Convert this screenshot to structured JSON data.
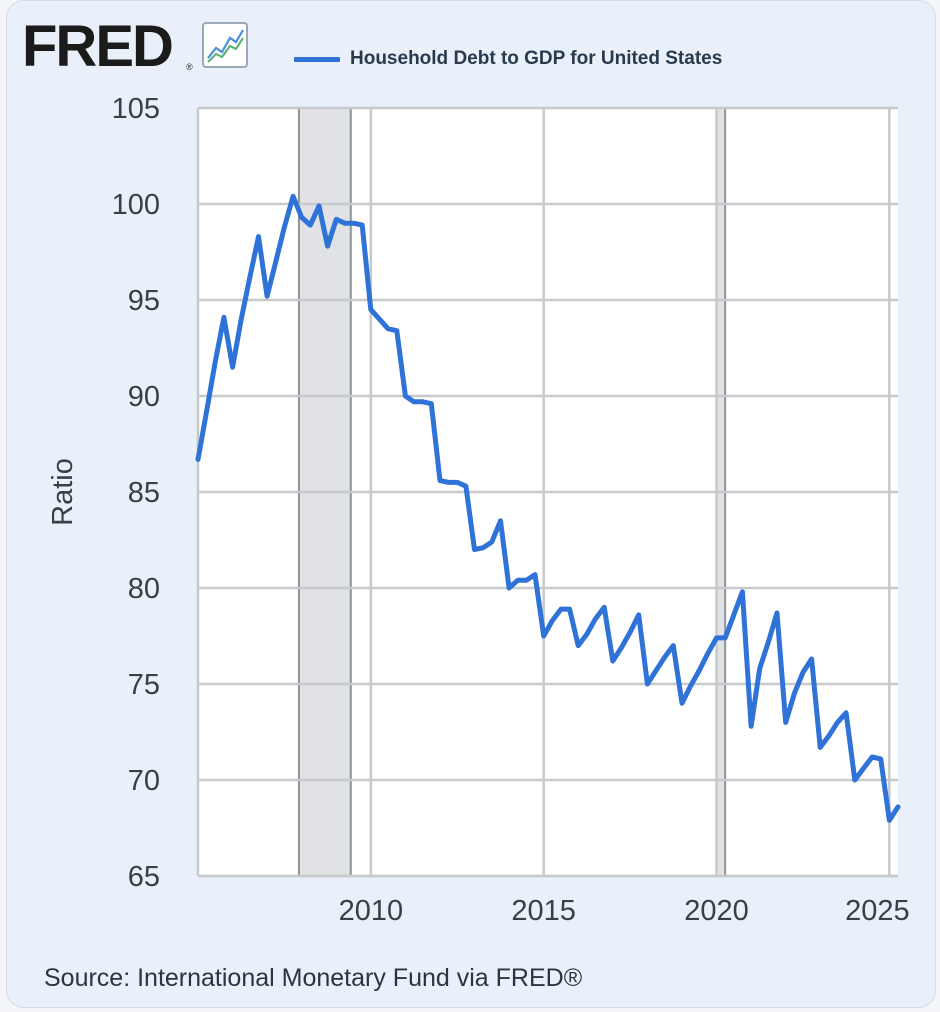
{
  "header": {
    "logo_text": "FRED",
    "logo_reg": "®",
    "graph_icon": "line-chart-icon"
  },
  "colors": {
    "series": "#2f72d8",
    "recession": "#e0e2e6",
    "grid": "#c7c9cd",
    "plot_bg": "#ffffff"
  },
  "footer": {
    "source": "Source: International Monetary Fund via FRED®"
  },
  "chart_data": {
    "type": "line",
    "title": "",
    "xlabel": "",
    "ylabel": "Ratio",
    "xlim": [
      2005.0,
      2025.25
    ],
    "ylim": [
      65,
      105
    ],
    "grid": true,
    "legend": "top",
    "yticks": [
      65,
      70,
      75,
      80,
      85,
      90,
      95,
      100,
      105
    ],
    "xticks": [
      2010,
      2015,
      2020,
      2025
    ],
    "recessions": [
      [
        2007.92,
        2009.42
      ],
      [
        2020.0,
        2020.25
      ]
    ],
    "series": [
      {
        "name": "Household Debt to GDP for United States",
        "x": [
          2005.0,
          2005.25,
          2005.5,
          2005.75,
          2006.0,
          2006.25,
          2006.5,
          2006.75,
          2007.0,
          2007.25,
          2007.5,
          2007.75,
          2008.0,
          2008.25,
          2008.5,
          2008.75,
          2009.0,
          2009.25,
          2009.5,
          2009.75,
          2010.0,
          2010.25,
          2010.5,
          2010.75,
          2011.0,
          2011.25,
          2011.5,
          2011.75,
          2012.0,
          2012.25,
          2012.5,
          2012.75,
          2013.0,
          2013.25,
          2013.5,
          2013.75,
          2014.0,
          2014.25,
          2014.5,
          2014.75,
          2015.0,
          2015.25,
          2015.5,
          2015.75,
          2016.0,
          2016.25,
          2016.5,
          2016.75,
          2017.0,
          2017.25,
          2017.5,
          2017.75,
          2018.0,
          2018.25,
          2018.5,
          2018.75,
          2019.0,
          2019.25,
          2019.5,
          2019.75,
          2020.0,
          2020.25,
          2020.5,
          2020.75,
          2021.0,
          2021.25,
          2021.5,
          2021.75,
          2022.0,
          2022.25,
          2022.5,
          2022.75,
          2023.0,
          2023.25,
          2023.5,
          2023.75,
          2024.0,
          2024.25,
          2024.5,
          2024.75,
          2025.0,
          2025.25
        ],
        "values": [
          86.7,
          89.2,
          91.8,
          94.1,
          91.5,
          94.0,
          96.2,
          98.3,
          95.2,
          97.0,
          98.8,
          100.4,
          99.3,
          98.9,
          99.9,
          97.8,
          99.2,
          99.0,
          99.0,
          98.9,
          94.5,
          94.0,
          93.5,
          93.4,
          90.0,
          89.7,
          89.7,
          89.6,
          85.6,
          85.5,
          85.5,
          85.3,
          82.0,
          82.1,
          82.4,
          83.5,
          80.0,
          80.4,
          80.4,
          80.7,
          77.5,
          78.3,
          78.9,
          78.9,
          77.0,
          77.6,
          78.4,
          79.0,
          76.2,
          76.9,
          77.7,
          78.6,
          75.0,
          75.7,
          76.4,
          77.0,
          74.0,
          74.9,
          75.7,
          76.6,
          77.4,
          77.4,
          78.6,
          79.8,
          72.8,
          75.8,
          77.2,
          78.7,
          73.0,
          74.5,
          75.6,
          76.3,
          71.7,
          72.3,
          73.0,
          73.5,
          70.0,
          70.6,
          71.2,
          71.1,
          67.9,
          68.6
        ]
      }
    ]
  }
}
